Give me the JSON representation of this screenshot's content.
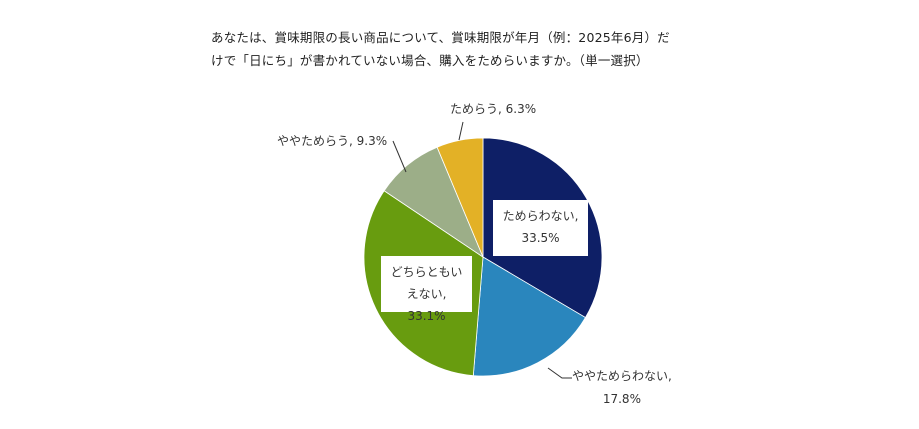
{
  "title": {
    "line1": "あなたは、賞味期限の長い商品について、賞味期限が年月（例：2025年6月）だ",
    "line2": "けで「日にち」が書かれていない場合、購入をためらいますか。（単一選択）"
  },
  "chart_data": {
    "type": "pie",
    "title": "あなたは、賞味期限の長い商品について、賞味期限が年月（例：2025年6月）だけで「日にち」が書かれていない場合、購入をためらいますか。（単一選択）",
    "categories": [
      "ためらわない",
      "ややためらわない",
      "どちらともいえない",
      "ややためらう",
      "ためらう"
    ],
    "values": [
      33.5,
      17.8,
      33.1,
      9.3,
      6.3
    ],
    "unit": "%",
    "colors": [
      "#0e1f66",
      "#2a86bd",
      "#689c0f",
      "#9cae88",
      "#e3b126"
    ],
    "start_angle": "12 o'clock",
    "direction": "clockwise",
    "legend": "none (data labels)"
  },
  "labels": {
    "s0_line1": "ためらわない,",
    "s0_line2": "33.5%",
    "s1_line1": "ややためらわない,",
    "s1_line2": "17.8%",
    "s2_line1": "どちらともい",
    "s2_line2": "えない, 33.1%",
    "s3": "ややためらう, 9.3%",
    "s4": "ためらう, 6.3%"
  }
}
